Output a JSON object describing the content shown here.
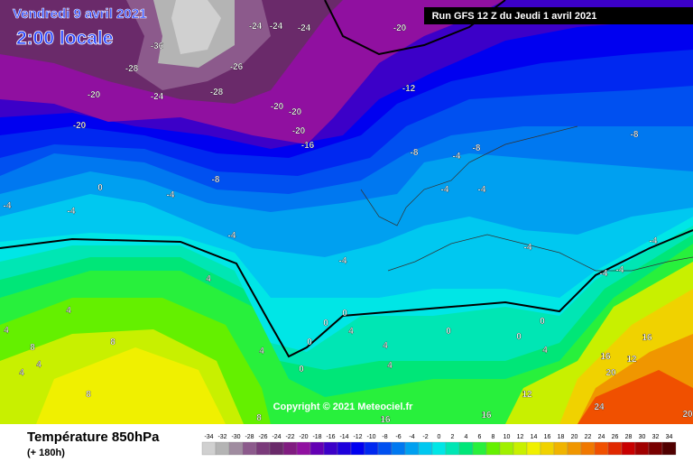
{
  "header": {
    "date": "Vendredi 9 avril 2021",
    "time": "2:00 locale",
    "run": "Run GFS 12 Z du Jeudi 1 avril 2021"
  },
  "map_labels": [
    -24,
    -24,
    -24,
    -20,
    -36,
    -28,
    -26,
    -20,
    -24,
    -28,
    -12,
    -20,
    -20,
    -20,
    -20,
    -16,
    -8,
    -8,
    -4,
    -8,
    -8,
    0,
    -4,
    -4,
    -4,
    -4,
    -4,
    -4,
    -4,
    -4,
    -4,
    4,
    -4,
    -4,
    0,
    4,
    0,
    0,
    0,
    4,
    4,
    8,
    4,
    4,
    8,
    4,
    4,
    8,
    4,
    0,
    0,
    0,
    4,
    12,
    16,
    16,
    12,
    20,
    20,
    24,
    16,
    16,
    8
  ],
  "copyright": "Copyright © 2021 Meteociel.fr",
  "footer": {
    "title": "Température 850hPa",
    "lead": "(+ 180h)"
  },
  "legend": {
    "values": [
      -34,
      -32,
      -30,
      -28,
      -26,
      -24,
      -22,
      -20,
      -18,
      -16,
      -14,
      -12,
      -10,
      -8,
      -6,
      -4,
      -2,
      0,
      2,
      4,
      6,
      8,
      10,
      12,
      14,
      16,
      18,
      20,
      22,
      24,
      26,
      28,
      30,
      32,
      34
    ],
    "colors": [
      "#d0d0d0",
      "#b4b4b4",
      "#a08ca0",
      "#8c5a8c",
      "#7a3a7a",
      "#6a2a6a",
      "#801c80",
      "#9010a0",
      "#6400b4",
      "#3c00c8",
      "#1e00dc",
      "#0000f0",
      "#0028f0",
      "#0050f0",
      "#0078f0",
      "#00a0f0",
      "#00c8f0",
      "#00e6e6",
      "#00e6b4",
      "#00e678",
      "#28f03c",
      "#64f000",
      "#a0f000",
      "#c8f000",
      "#f0f000",
      "#f0d200",
      "#f0b400",
      "#f09600",
      "#f07800",
      "#f05000",
      "#e02800",
      "#c80000",
      "#a00000",
      "#780000",
      "#500000"
    ]
  }
}
